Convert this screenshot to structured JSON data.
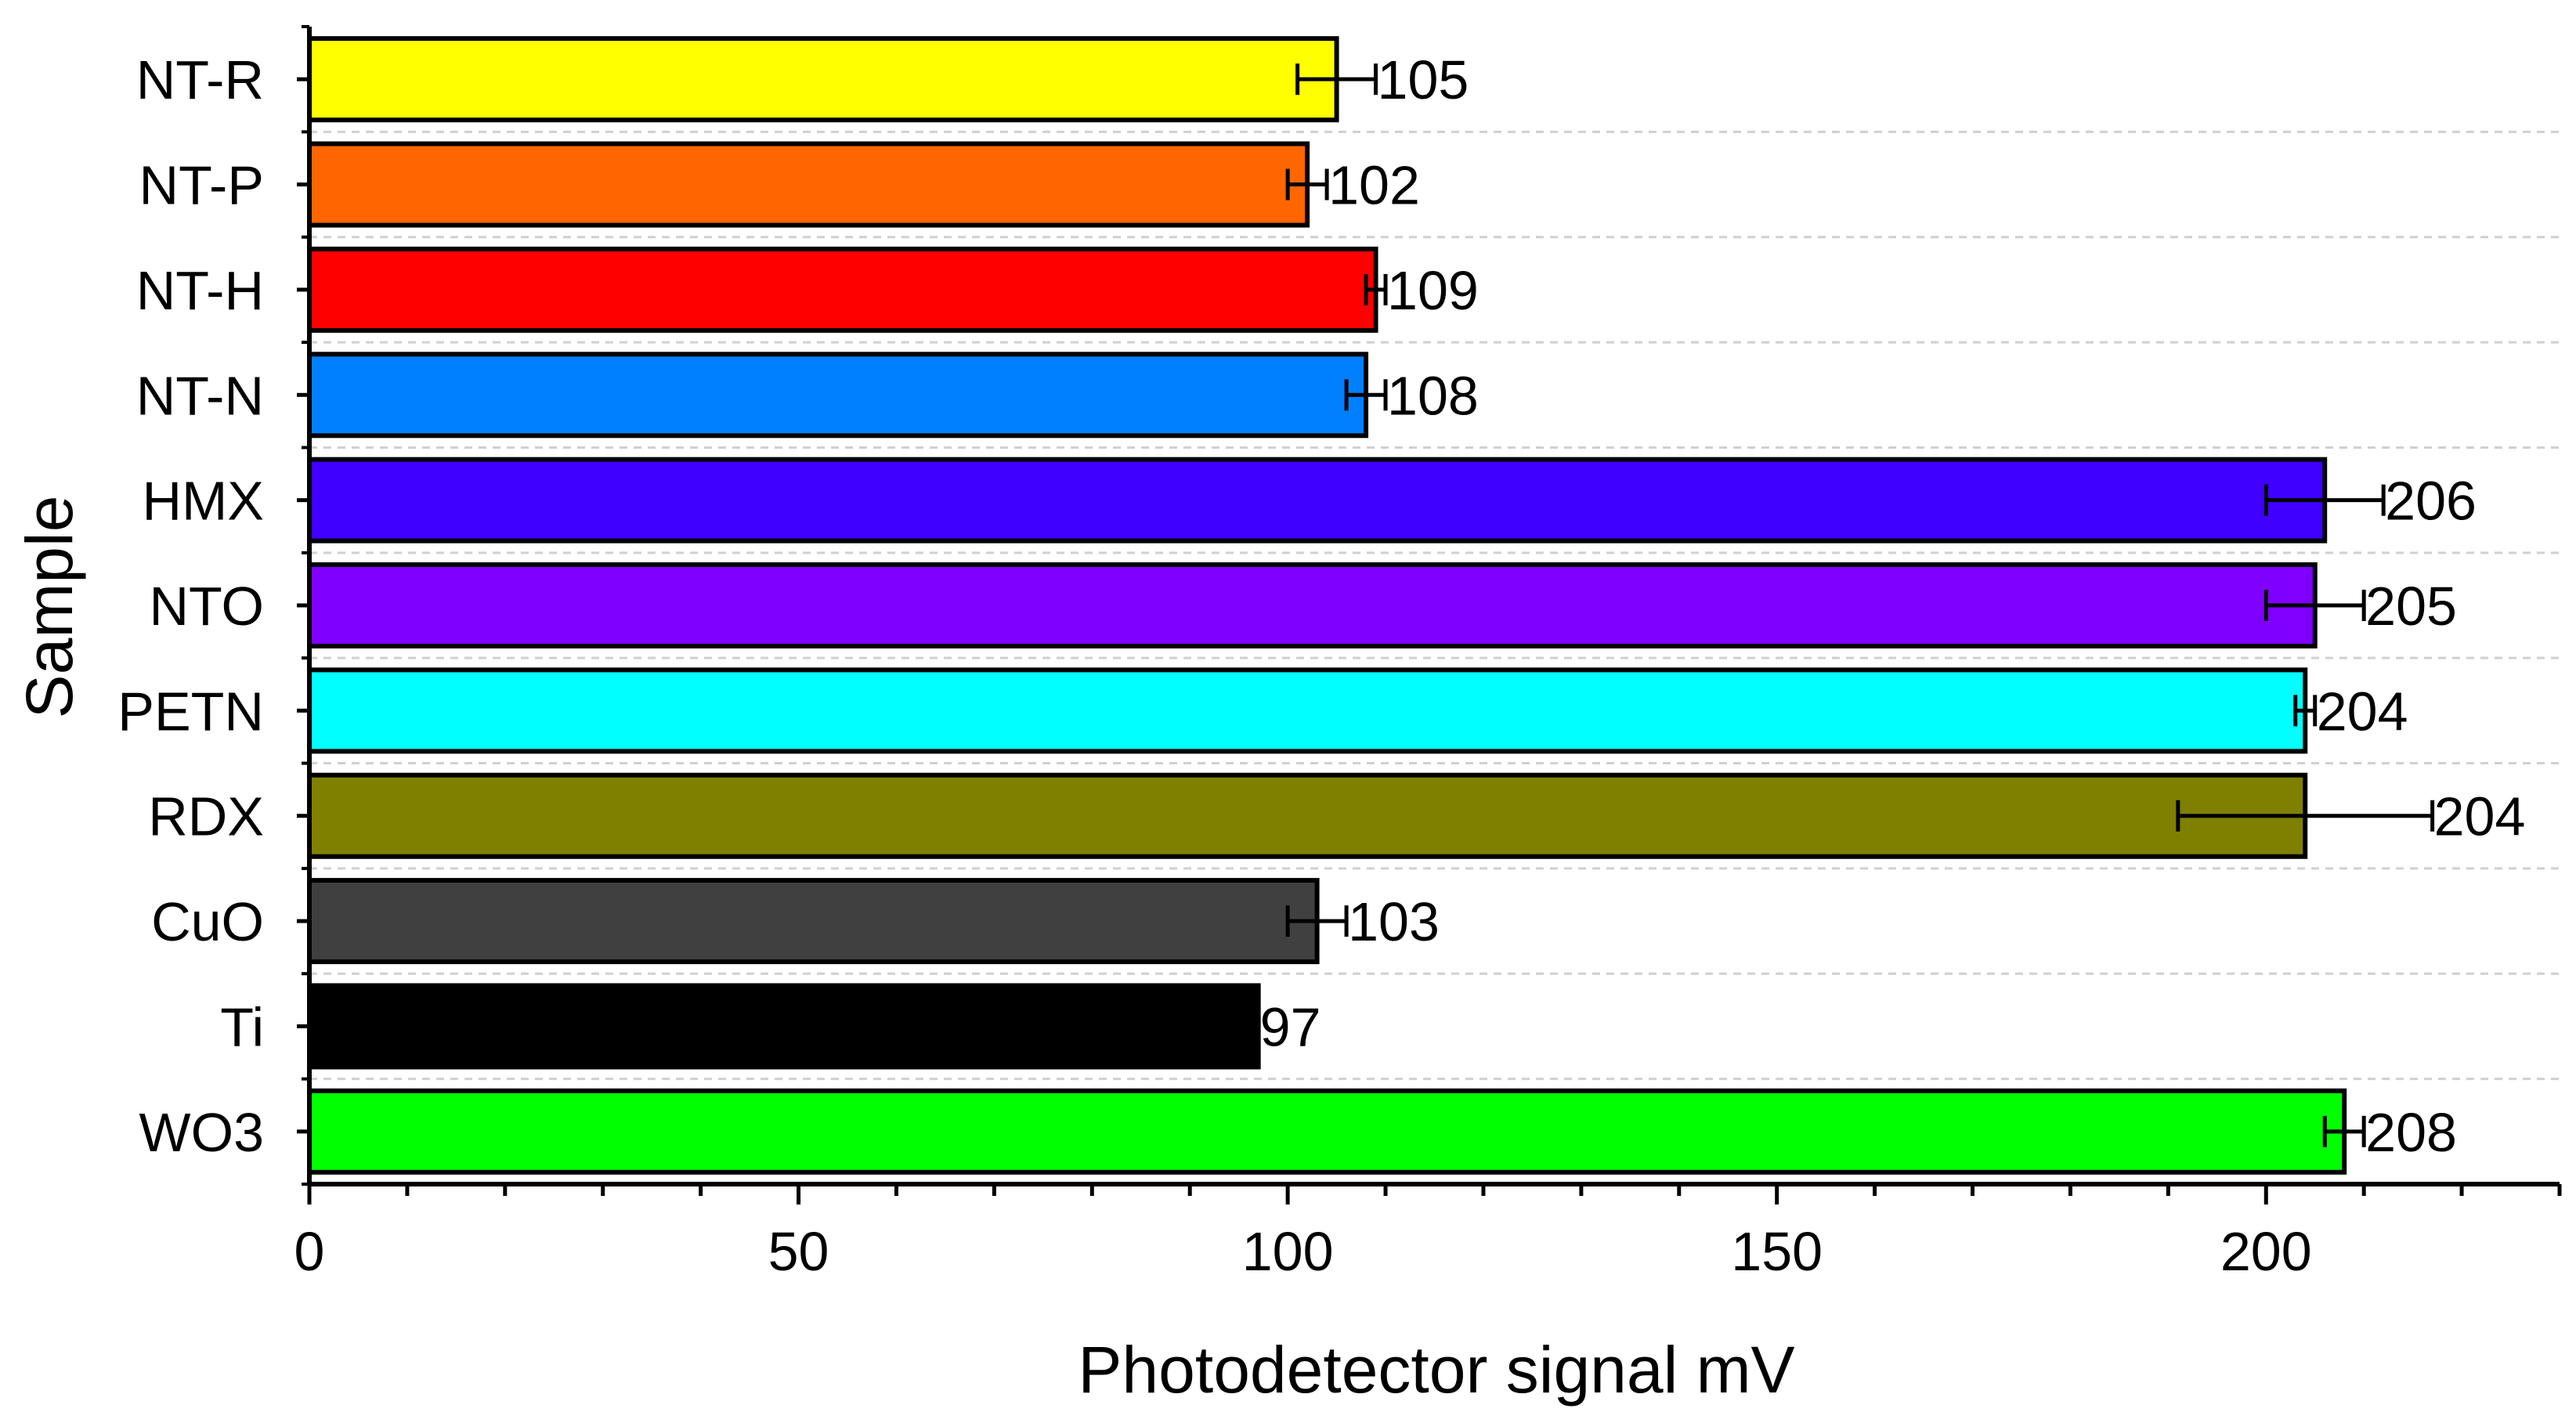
{
  "chart_data": {
    "type": "bar",
    "orientation": "horizontal",
    "title": "",
    "xlabel": "Photodetector signal mV",
    "ylabel": "Sample",
    "xlim": [
      0,
      230
    ],
    "x_ticks": [
      0,
      50,
      100,
      150,
      200
    ],
    "x_tick_labels": [
      "0",
      "50",
      "100",
      "150",
      "200"
    ],
    "grid": "dashed horizontal",
    "categories": [
      "NT-R",
      "NT-P",
      "NT-H",
      "NT-N",
      "HMX",
      "NTO",
      "PETN",
      "RDX",
      "CuO",
      "Ti",
      "WO3"
    ],
    "values": [
      105,
      102,
      109,
      108,
      206,
      205,
      204,
      204,
      103,
      97,
      208
    ],
    "value_labels": [
      "105",
      "102",
      "109",
      "108",
      "206",
      "205",
      "204",
      "204",
      "103",
      "97",
      "208"
    ],
    "errors": [
      4,
      2,
      1,
      2,
      6,
      5,
      1,
      13,
      3,
      0,
      2
    ],
    "colors": [
      "#ffff00",
      "#ff6600",
      "#ff0000",
      "#0080ff",
      "#4000ff",
      "#8000ff",
      "#00ffff",
      "#808000",
      "#404040",
      "#000000",
      "#00ff00"
    ]
  }
}
